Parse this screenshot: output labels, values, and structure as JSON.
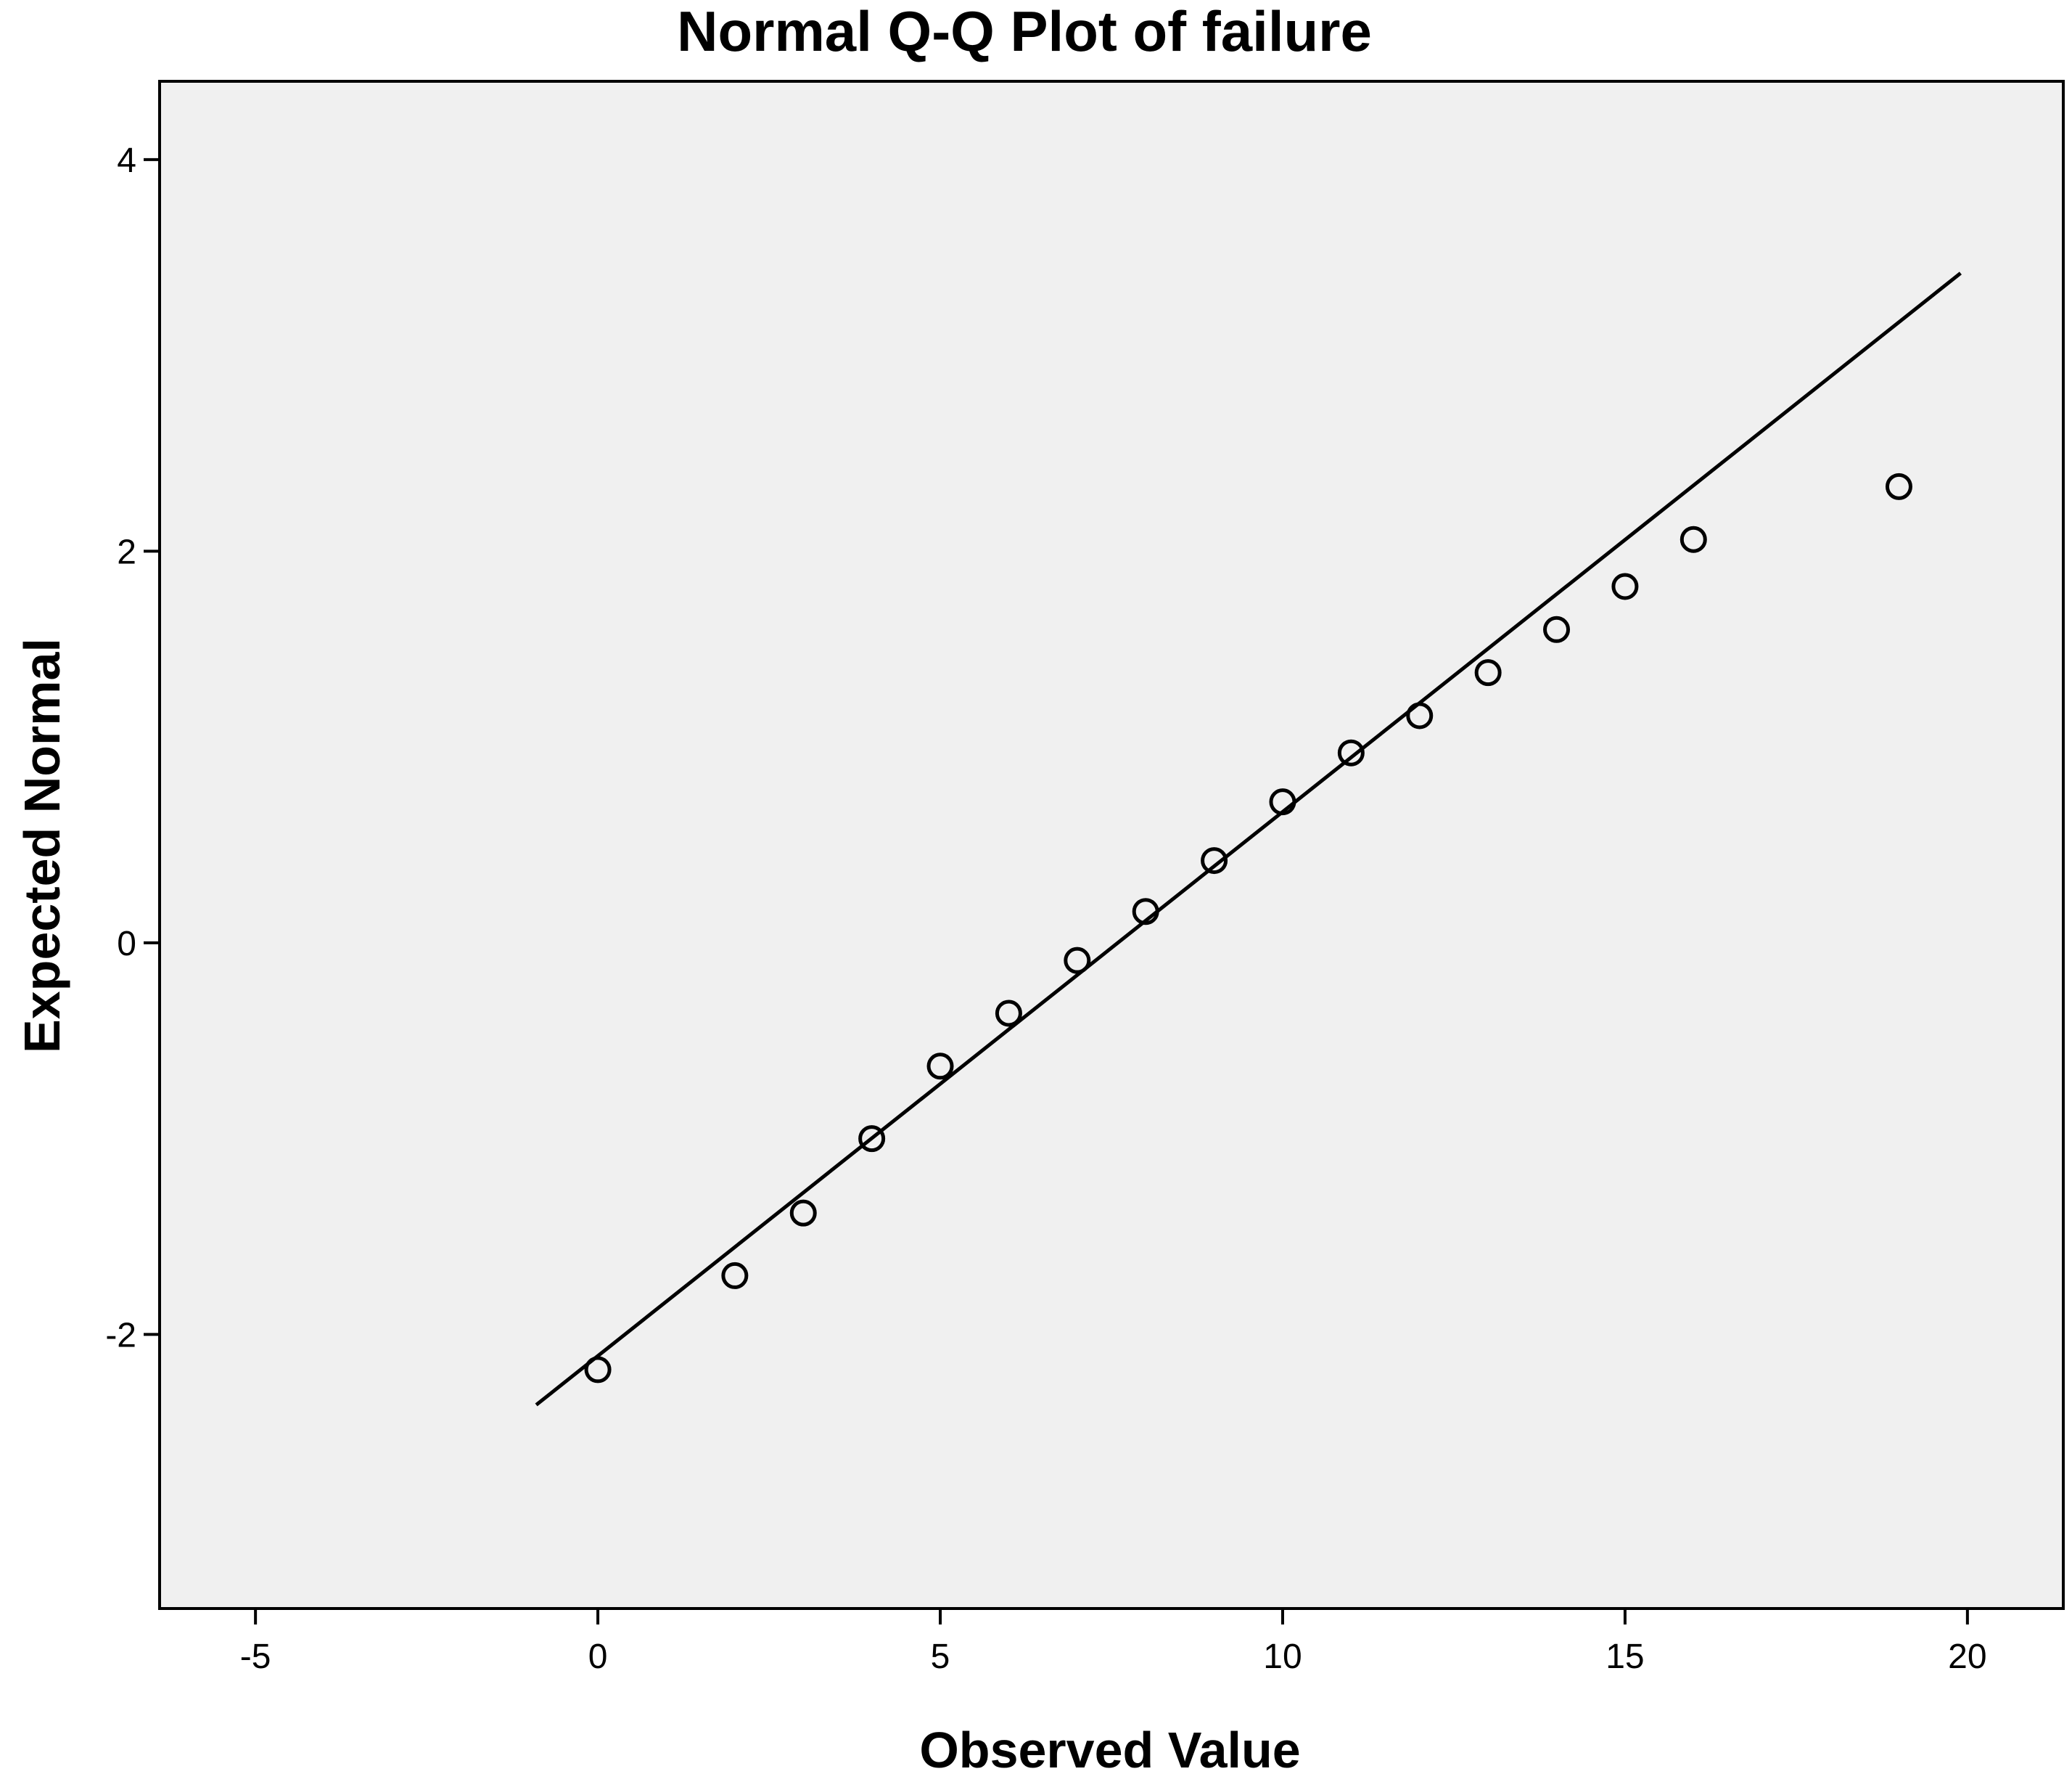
{
  "chart_data": {
    "type": "scatter",
    "title": "Normal Q-Q Plot of failure",
    "xlabel": "Observed Value",
    "ylabel": "Expected Normal",
    "xlim": [
      -6.4,
      21.4
    ],
    "ylim": [
      -3.4,
      4.4
    ],
    "x_ticks": [
      -5,
      0,
      5,
      10,
      15,
      20
    ],
    "y_ticks": [
      -2,
      0,
      2,
      4
    ],
    "x_tick_labels": [
      "-5",
      "0",
      "5",
      "10",
      "15",
      "20"
    ],
    "y_tick_labels": [
      "-2",
      "0",
      "2",
      "4"
    ],
    "grid": false,
    "legend": "none",
    "points": [
      {
        "x": 0,
        "y": -2.18
      },
      {
        "x": 2,
        "y": -1.7
      },
      {
        "x": 3,
        "y": -1.38
      },
      {
        "x": 4,
        "y": -1.0
      },
      {
        "x": 5,
        "y": -0.63
      },
      {
        "x": 6,
        "y": -0.36
      },
      {
        "x": 7,
        "y": -0.09
      },
      {
        "x": 8,
        "y": 0.16
      },
      {
        "x": 9,
        "y": 0.42
      },
      {
        "x": 10,
        "y": 0.72
      },
      {
        "x": 11,
        "y": 0.97
      },
      {
        "x": 12,
        "y": 1.16
      },
      {
        "x": 13,
        "y": 1.38
      },
      {
        "x": 14,
        "y": 1.6
      },
      {
        "x": 15,
        "y": 1.82
      },
      {
        "x": 16,
        "y": 2.06
      },
      {
        "x": 19,
        "y": 2.33
      }
    ],
    "reference_line": {
      "x1": -0.9,
      "y1": -2.36,
      "x2": 19.9,
      "y2": 3.42
    },
    "colors": {
      "plot_background": "#f0f0f0",
      "marker_stroke": "#000000",
      "line": "#000000",
      "frame": "#000000"
    }
  }
}
